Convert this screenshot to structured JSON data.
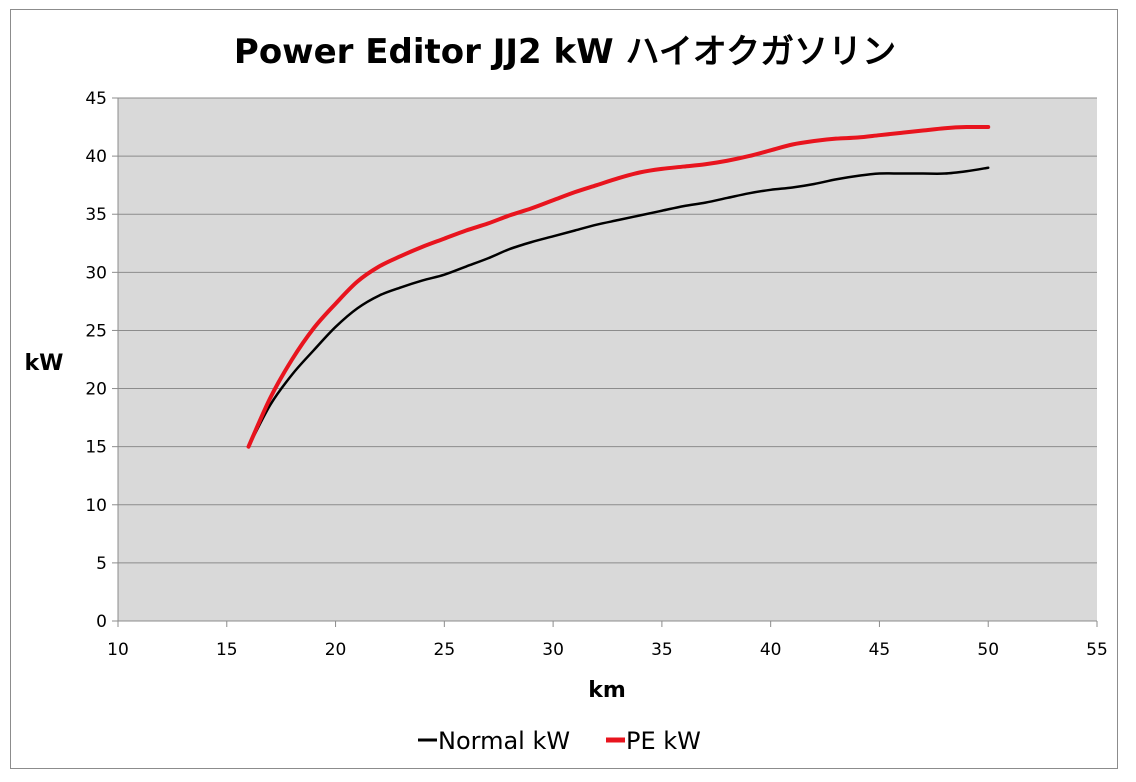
{
  "chart_data": {
    "type": "line",
    "title": "Power Editor JJ2 kW ハイオクガソリン",
    "xlabel": "km",
    "ylabel": "kW",
    "xlim": [
      10,
      55
    ],
    "ylim": [
      0,
      45
    ],
    "x_ticks": [
      "10",
      "15",
      "20",
      "25",
      "30",
      "35",
      "40",
      "45",
      "50",
      "55"
    ],
    "y_ticks": [
      "0",
      "5",
      "10",
      "15",
      "20",
      "25",
      "30",
      "35",
      "40",
      "45"
    ],
    "grid": "horizontal",
    "legend_position": "bottom",
    "series": [
      {
        "name": "Normal kW",
        "color": "#000000",
        "x": [
          16,
          17,
          18,
          19,
          20,
          21,
          22,
          23,
          24,
          25,
          26,
          27,
          28,
          29,
          30,
          31,
          32,
          33,
          34,
          35,
          36,
          37,
          38,
          39,
          40,
          41,
          42,
          43,
          44,
          45,
          46,
          47,
          48,
          49,
          50
        ],
        "values": [
          15.0,
          18.6,
          21.2,
          23.3,
          25.3,
          26.9,
          28.0,
          28.7,
          29.3,
          29.8,
          30.5,
          31.2,
          32.0,
          32.6,
          33.1,
          33.6,
          34.1,
          34.5,
          34.9,
          35.3,
          35.7,
          36.0,
          36.4,
          36.8,
          37.1,
          37.3,
          37.6,
          38.0,
          38.3,
          38.5,
          38.5,
          38.5,
          38.5,
          38.7,
          39.0
        ]
      },
      {
        "name": "PE kW",
        "color": "#e8141e",
        "x": [
          16,
          17,
          18,
          19,
          20,
          21,
          22,
          23,
          24,
          25,
          26,
          27,
          28,
          29,
          30,
          31,
          32,
          33,
          34,
          35,
          36,
          37,
          38,
          39,
          40,
          41,
          42,
          43,
          44,
          45,
          46,
          47,
          48,
          49,
          50
        ],
        "values": [
          15.0,
          19.2,
          22.5,
          25.2,
          27.3,
          29.2,
          30.5,
          31.4,
          32.2,
          32.9,
          33.6,
          34.2,
          34.9,
          35.5,
          36.2,
          36.9,
          37.5,
          38.1,
          38.6,
          38.9,
          39.1,
          39.3,
          39.6,
          40.0,
          40.5,
          41.0,
          41.3,
          41.5,
          41.6,
          41.8,
          42.0,
          42.2,
          42.4,
          42.5,
          42.5
        ]
      }
    ]
  }
}
